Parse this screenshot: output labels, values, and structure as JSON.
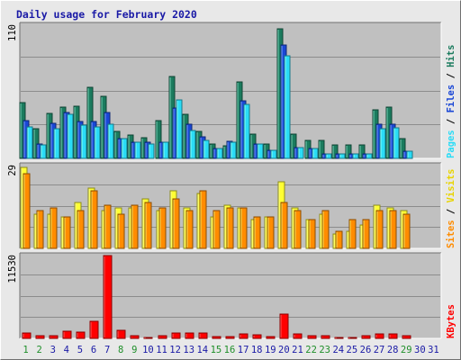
{
  "window": {
    "title": "Daily usage for February 2020"
  },
  "colors": {
    "background": "#e8e8e8",
    "plot_background": "#c0c0c0",
    "hits": "#1b7b5e",
    "files": "#1a47d6",
    "pages": "#2adcf6",
    "visits": "#ffff33",
    "sites": "#ff8c00",
    "kbytes": "#ff0000",
    "weekend_day_label": "#1f8f2a",
    "weekday_day_label": "#1a1aa6",
    "title_text": "#1a1aa6",
    "hits_label": "#1b7b5e",
    "files_label": "#1a47d6",
    "pages_label": "#2adcf6",
    "visits_label": "#e8d400",
    "sites_label": "#ff8c00",
    "kbytes_label": "#ff0000"
  },
  "chart_data": [
    {
      "type": "bar",
      "panel": "hits-files-pages",
      "y_max_label": "110",
      "ylim": [
        0,
        110
      ],
      "legend_right": [
        {
          "key": "hits",
          "text": "Hits"
        },
        {
          "key": "files",
          "text": "Files"
        },
        {
          "key": "pages",
          "text": "Pages"
        }
      ],
      "separator": " / ",
      "categories": [
        "1",
        "2",
        "3",
        "4",
        "5",
        "6",
        "7",
        "8",
        "9",
        "10",
        "11",
        "12",
        "13",
        "14",
        "15",
        "16",
        "17",
        "18",
        "19",
        "20",
        "21",
        "22",
        "23",
        "24",
        "25",
        "26",
        "27",
        "28",
        "29",
        "30",
        "31"
      ],
      "series": [
        {
          "name": "Hits",
          "values": [
            46,
            24,
            37,
            42,
            43,
            58,
            51,
            22,
            19,
            17,
            31,
            67,
            36,
            22,
            12,
            10,
            63,
            20,
            12,
            106,
            20,
            15,
            15,
            11,
            11,
            11,
            40,
            42,
            16,
            0,
            0
          ]
        },
        {
          "name": "Files",
          "values": [
            31,
            12,
            29,
            38,
            30,
            30,
            38,
            16,
            13,
            13,
            13,
            41,
            28,
            18,
            8,
            14,
            47,
            12,
            7,
            93,
            9,
            8,
            4,
            4,
            4,
            4,
            28,
            28,
            6,
            0,
            0
          ]
        },
        {
          "name": "Pages",
          "values": [
            26,
            11,
            24,
            36,
            27,
            26,
            28,
            16,
            13,
            12,
            13,
            48,
            23,
            15,
            8,
            13,
            44,
            12,
            7,
            84,
            9,
            8,
            4,
            4,
            4,
            4,
            24,
            25,
            6,
            0,
            0
          ]
        }
      ]
    },
    {
      "type": "bar",
      "panel": "visits-sites",
      "y_max_label": "29",
      "ylim": [
        0,
        29
      ],
      "legend_right": [
        {
          "key": "visits",
          "text": "Visits"
        },
        {
          "key": "sites",
          "text": "Sites"
        }
      ],
      "separator": " / ",
      "categories": [
        "1",
        "2",
        "3",
        "4",
        "5",
        "6",
        "7",
        "8",
        "9",
        "10",
        "11",
        "12",
        "13",
        "14",
        "15",
        "16",
        "17",
        "18",
        "19",
        "20",
        "21",
        "22",
        "23",
        "24",
        "25",
        "26",
        "27",
        "28",
        "29",
        "30",
        "31"
      ],
      "series": [
        {
          "name": "Visits",
          "values": [
            28,
            12,
            12,
            11,
            16,
            21,
            13,
            14,
            14,
            17,
            13,
            20,
            14,
            19,
            11,
            15,
            14,
            10,
            11,
            23,
            14,
            10,
            12,
            5,
            6,
            8,
            15,
            14,
            13,
            0,
            0
          ]
        },
        {
          "name": "Sites",
          "values": [
            26,
            13,
            14,
            11,
            13,
            20,
            15,
            12,
            15,
            16,
            14,
            17,
            13,
            20,
            13,
            14,
            14,
            11,
            11,
            16,
            13,
            10,
            13,
            6,
            10,
            10,
            13,
            13,
            12,
            0,
            0
          ]
        }
      ]
    },
    {
      "type": "bar",
      "panel": "kbytes",
      "y_max_label": "11530",
      "ylim": [
        0,
        11530
      ],
      "legend_right": [
        {
          "key": "kbytes",
          "text": "KBytes"
        }
      ],
      "separator": " / ",
      "categories": [
        "1",
        "2",
        "3",
        "4",
        "5",
        "6",
        "7",
        "8",
        "9",
        "10",
        "11",
        "12",
        "13",
        "14",
        "15",
        "16",
        "17",
        "18",
        "19",
        "20",
        "21",
        "22",
        "23",
        "24",
        "25",
        "26",
        "27",
        "28",
        "29",
        "30",
        "31"
      ],
      "series": [
        {
          "name": "KBytes",
          "values": [
            780,
            320,
            420,
            1050,
            900,
            2350,
            11400,
            1150,
            400,
            180,
            310,
            800,
            690,
            780,
            280,
            280,
            580,
            500,
            280,
            3300,
            600,
            330,
            320,
            180,
            180,
            310,
            650,
            620,
            380,
            0,
            0
          ]
        }
      ]
    }
  ],
  "x_axis": {
    "weekend_days": [
      "1",
      "2",
      "8",
      "9",
      "15",
      "16",
      "22",
      "23",
      "29"
    ]
  }
}
